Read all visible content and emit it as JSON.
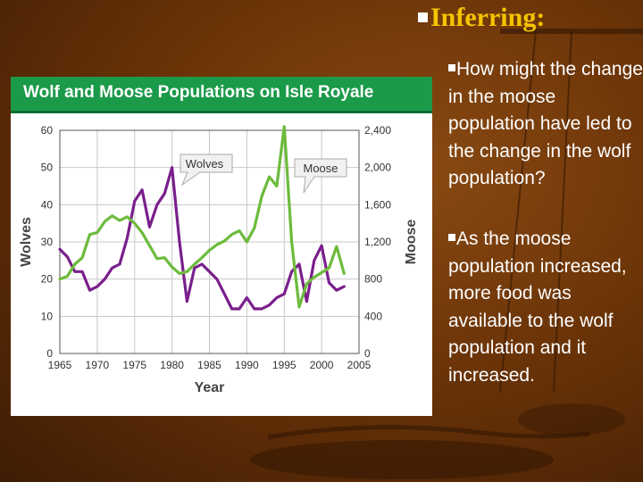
{
  "slide": {
    "title": "Inferring:",
    "question": "How might the change in the moose population have led to the change in the wolf population?",
    "answer": "As the moose population increased, more food was available to the wolf population and it increased."
  },
  "colors": {
    "background": "#6b3408",
    "title": "#f6c400",
    "header_green": "#1b9a4a",
    "wolves_line": "#7a1f8c",
    "moose_line": "#6cbb3c"
  },
  "chart_data": {
    "type": "line",
    "title": "Wolf and Moose Populations on Isle Royale",
    "xlabel": "Year",
    "ylabel_left": "Wolves",
    "ylabel_right": "Moose",
    "xlim": [
      1965,
      2005
    ],
    "ylim_left": [
      0,
      60
    ],
    "ylim_right": [
      0,
      2400
    ],
    "x_ticks": [
      "1965",
      "1970",
      "1975",
      "1980",
      "1985",
      "1990",
      "1995",
      "2000",
      "2005"
    ],
    "y_ticks_left": [
      "0",
      "10",
      "20",
      "30",
      "40",
      "50",
      "60"
    ],
    "y_ticks_right": [
      "0",
      "400",
      "800",
      "1,200",
      "1,600",
      "2,000",
      "2,400"
    ],
    "grid": true,
    "callouts": [
      "Wolves",
      "Moose"
    ],
    "series": [
      {
        "name": "Wolves",
        "axis": "left",
        "color": "#7a1f8c",
        "x": [
          1965,
          1966,
          1967,
          1968,
          1969,
          1970,
          1971,
          1972,
          1973,
          1974,
          1975,
          1976,
          1977,
          1978,
          1979,
          1980,
          1981,
          1982,
          1983,
          1984,
          1985,
          1986,
          1987,
          1988,
          1989,
          1990,
          1991,
          1992,
          1993,
          1994,
          1995,
          1996,
          1997,
          1998,
          1999,
          2000,
          2001,
          2002,
          2003
        ],
        "y": [
          28,
          26,
          22,
          22,
          17,
          18,
          20,
          23,
          24,
          31,
          41,
          44,
          34,
          40,
          43,
          50,
          30,
          14,
          23,
          24,
          22,
          20,
          16,
          12,
          12,
          15,
          12,
          12,
          13,
          15,
          16,
          22,
          24,
          14,
          25,
          29,
          19,
          17,
          18
        ]
      },
      {
        "name": "Moose",
        "axis": "right",
        "color": "#6cbb3c",
        "x": [
          1965,
          1966,
          1967,
          1968,
          1969,
          1970,
          1971,
          1972,
          1973,
          1974,
          1975,
          1976,
          1977,
          1978,
          1979,
          1980,
          1981,
          1982,
          1983,
          1984,
          1985,
          1986,
          1987,
          1988,
          1989,
          1990,
          1991,
          1992,
          1993,
          1994,
          1995,
          1996,
          1997,
          1998,
          1999,
          2000,
          2001,
          2002,
          2003
        ],
        "y": [
          800,
          830,
          960,
          1030,
          1280,
          1300,
          1420,
          1480,
          1430,
          1470,
          1400,
          1300,
          1160,
          1020,
          1030,
          930,
          860,
          880,
          960,
          1030,
          1110,
          1170,
          1210,
          1280,
          1320,
          1200,
          1350,
          1690,
          1900,
          1800,
          2440,
          1200,
          500,
          750,
          820,
          870,
          920,
          1150,
          860
        ]
      }
    ]
  }
}
